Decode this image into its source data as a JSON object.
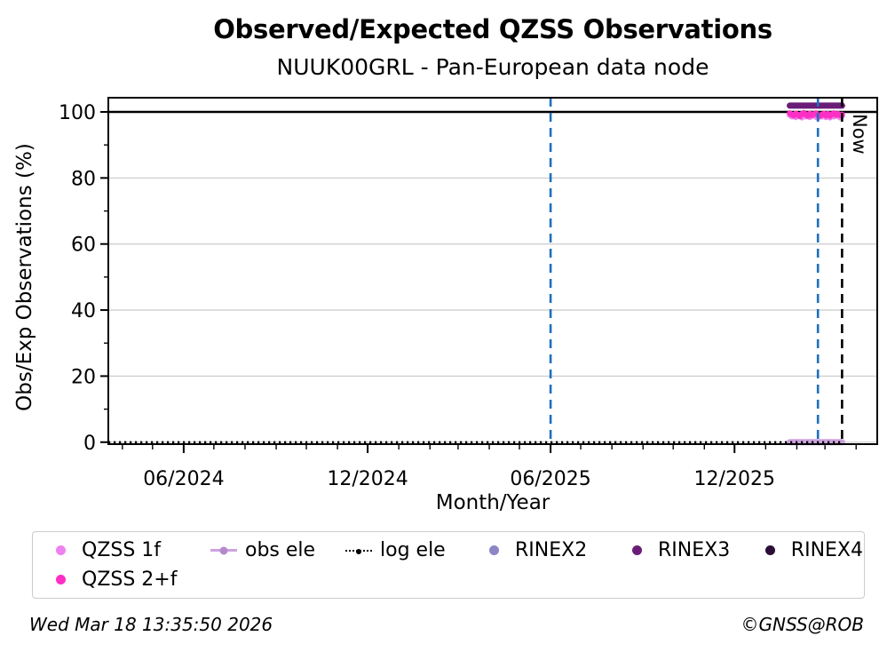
{
  "footer": {
    "timestamp": "Wed Mar 18 13:35:50 2026",
    "credit": "©GNSS@ROB"
  },
  "now_label": "Now",
  "colors": {
    "qzss_1f": "#EE82EE",
    "qzss_2f": "#FF2EC4",
    "obs_ele_line": "#CDA3DF",
    "obs_ele_dot": "#B689CE",
    "log_ele": "#000000",
    "rinex2": "#8C86C6",
    "rinex3": "#6B1C78",
    "rinex4": "#2B0E38",
    "vline_blue": "#1F6FBE",
    "grid": "#CFCFCF",
    "legend_border": "#CCCCCC"
  },
  "legend": {
    "rows": [
      [
        {
          "label": "QZSS 1f",
          "marker": "dot",
          "color": "#EE82EE"
        },
        {
          "label": "obs ele",
          "marker": "line-dot",
          "color": "#CDA3DF",
          "color2": "#B689CE"
        },
        {
          "label": "log ele",
          "marker": "dotted-line-dot",
          "color": "#000000"
        },
        {
          "label": "RINEX2",
          "marker": "dot",
          "color": "#8C86C6"
        },
        {
          "label": "RINEX3",
          "marker": "dot",
          "color": "#6B1C78"
        },
        {
          "label": "RINEX4",
          "marker": "dot",
          "color": "#2B0E38"
        }
      ],
      [
        {
          "label": "QZSS 2+f",
          "marker": "dot",
          "color": "#FF2EC4"
        }
      ]
    ]
  },
  "chart_data": {
    "type": "scatter",
    "title": "Observed/Expected QZSS Observations",
    "subtitle": "NUUK00GRL - Pan-European data node",
    "xlabel": "Month/Year",
    "ylabel": "Obs/Exp Observations (%)",
    "x_range": [
      "2024-03-18",
      "2026-04-22"
    ],
    "y_range": [
      -0.6,
      104.3
    ],
    "x_major_ticks": [
      {
        "date": "2024-06-01",
        "label": "06/2024"
      },
      {
        "date": "2024-12-01",
        "label": "12/2024"
      },
      {
        "date": "2025-06-01",
        "label": "06/2025"
      },
      {
        "date": "2025-12-01",
        "label": "12/2025"
      }
    ],
    "x_minor_unit": "month",
    "y_major_ticks": [
      0,
      20,
      40,
      60,
      80,
      100
    ],
    "y_minor_ticks": [
      10,
      30,
      50,
      70,
      90
    ],
    "y_gridlines": [
      0,
      20,
      40,
      60,
      80,
      100
    ],
    "grid": "horizontal-only",
    "legend_position": "below",
    "hline": {
      "y": 100,
      "color": "#000000"
    },
    "zero_line": {
      "name": "log ele",
      "y": 0,
      "start": "2024-03-18",
      "end": "2026-03-18",
      "style": "dotted",
      "color": "#000000"
    },
    "vlines": [
      {
        "date": "2025-06-01",
        "color": "#1F6FBE",
        "style": "dashed"
      },
      {
        "date": "2026-02-22",
        "color": "#1F6FBE",
        "style": "dashed"
      },
      {
        "date": "2026-03-18",
        "color": "#000000",
        "style": "dashed",
        "label": "Now"
      }
    ],
    "segments": [
      {
        "name": "obs ele",
        "y": 0,
        "start": "2026-01-25",
        "end": "2026-03-18",
        "color": "#CDA3DF",
        "width": 7
      },
      {
        "name": "RINEX3",
        "y": 101.9,
        "start": "2026-01-25",
        "end": "2026-03-18",
        "color": "#6B1C78",
        "width": 7
      }
    ],
    "obs_dates": [
      "2026-01-25",
      "2026-01-27",
      "2026-01-29",
      "2026-01-31",
      "2026-02-02",
      "2026-02-04",
      "2026-02-06",
      "2026-02-08",
      "2026-02-10",
      "2026-02-12",
      "2026-02-14",
      "2026-02-16",
      "2026-02-18",
      "2026-02-20",
      "2026-02-22",
      "2026-02-24",
      "2026-02-26",
      "2026-02-28",
      "2026-03-02",
      "2026-03-04",
      "2026-03-06",
      "2026-03-08",
      "2026-03-10",
      "2026-03-12",
      "2026-03-14",
      "2026-03-16",
      "2026-03-18"
    ],
    "series": [
      {
        "name": "QZSS 1f",
        "marker": "dot",
        "color": "#EE82EE",
        "values": [
          99.0,
          98.6,
          98.9,
          98.4,
          99.1,
          98.7,
          98.3,
          99.0,
          98.6,
          98.9,
          98.4,
          98.8,
          99.1,
          98.5,
          98.2,
          98.9,
          98.6,
          99.0,
          98.4,
          98.8,
          98.3,
          98.9,
          98.6,
          99.0,
          98.7,
          98.3,
          98.8
        ]
      },
      {
        "name": "QZSS 2+f",
        "marker": "dot",
        "color": "#FF2EC4",
        "values": [
          99.6,
          99.2,
          98.9,
          99.5,
          99.1,
          98.7,
          99.4,
          99.7,
          99.1,
          98.8,
          99.5,
          99.0,
          99.3,
          99.6,
          99.0,
          98.8,
          99.2,
          99.5,
          98.9,
          99.4,
          98.8,
          99.3,
          99.6,
          99.1,
          99.4,
          99.0,
          99.2
        ]
      }
    ]
  }
}
